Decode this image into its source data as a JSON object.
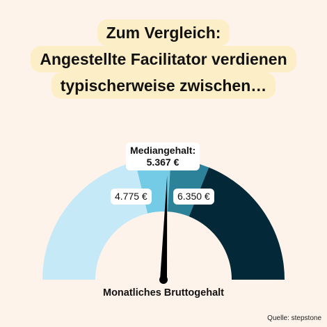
{
  "headline": {
    "line1": "Zum Vergleich:",
    "line2": "Angestellte Facilitator verdienen",
    "line3": "typischerweise zwischen…"
  },
  "chart_data": {
    "type": "gauge",
    "title": "Zum Vergleich: Angestellte Facilitator verdienen typischerweise zwischen…",
    "lower_label": "4.775 €",
    "median_title": "Mediangehalt:",
    "median_label": "5.367 €",
    "upper_label": "6.350 €",
    "lower_quartile": 4775,
    "median": 5367,
    "upper_quartile": 6350,
    "xlabel": "Monatliches Bruttogehalt",
    "segments": [
      {
        "color": "#c6e9f7"
      },
      {
        "color": "#74cbe6"
      },
      {
        "color": "#2b8299"
      },
      {
        "color": "#032837"
      }
    ],
    "needle_color": "#000000"
  },
  "source": "Quelle: stepstone"
}
